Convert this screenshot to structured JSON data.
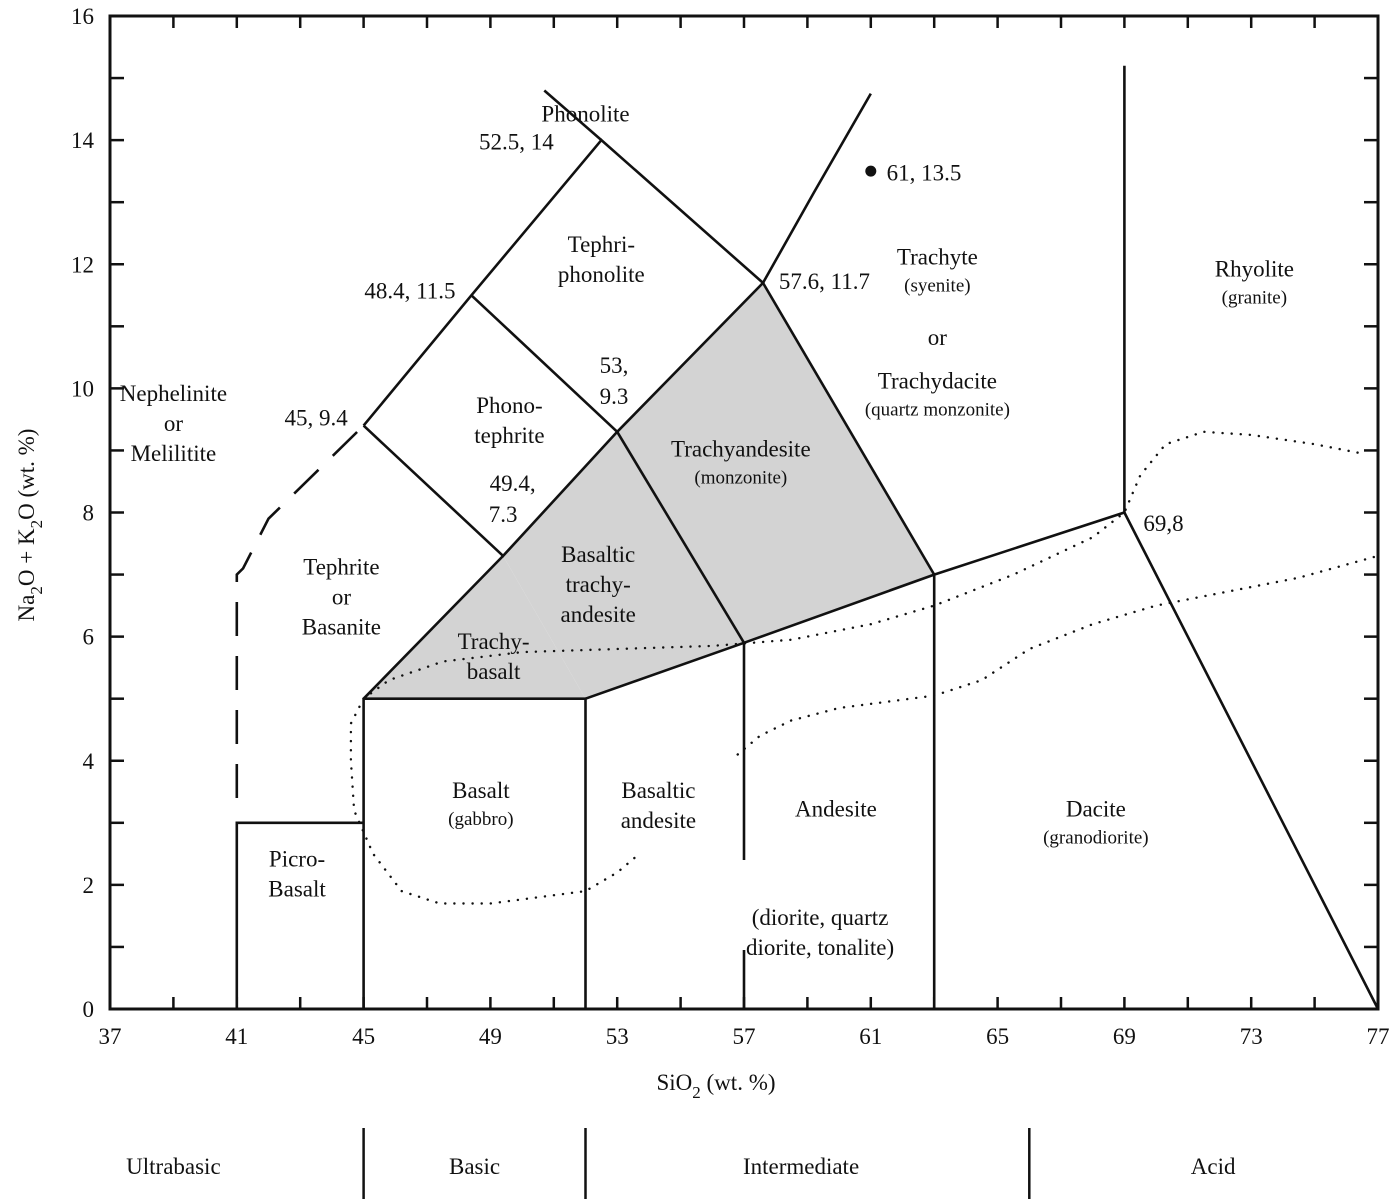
{
  "chart_data": {
    "type": "diagram",
    "x_axis": {
      "label_main": "SiO",
      "label_sub": "2",
      "label_tail": " (wt. %)",
      "range": [
        37,
        77
      ],
      "ticks": [
        "37",
        "41",
        "45",
        "49",
        "53",
        "57",
        "61",
        "65",
        "69",
        "73",
        "77"
      ]
    },
    "y_axis": {
      "label_parts": [
        "Na",
        "2",
        "O + K",
        "2",
        "O (wt. %)"
      ],
      "range": [
        0,
        16
      ],
      "ticks": [
        "0",
        "2",
        "4",
        "6",
        "8",
        "10",
        "12",
        "14",
        "16"
      ]
    },
    "fields": [
      {
        "name": "Phonolite",
        "lines": [
          "Phonolite"
        ],
        "sub": "",
        "at": [
          52.0,
          14.3
        ]
      },
      {
        "name": "Tephri-phonolite",
        "lines": [
          "Tephri-",
          "phonolite"
        ],
        "sub": "",
        "at": [
          52.5,
          12.2
        ]
      },
      {
        "name": "Phono-tephrite",
        "lines": [
          "Phono-",
          "tephrite"
        ],
        "sub": "",
        "at": [
          49.6,
          9.6
        ]
      },
      {
        "name": "Nephelinite or Melilitite",
        "lines": [
          "Nephelinite",
          "or",
          "Melilitite"
        ],
        "sub": "",
        "at": [
          39.0,
          9.8
        ]
      },
      {
        "name": "Tephrite or Basanite",
        "lines": [
          "Tephrite",
          "or",
          "Basanite"
        ],
        "sub": "",
        "at": [
          44.3,
          7.0
        ]
      },
      {
        "name": "Trachybasalt",
        "lines": [
          "Trachy-",
          "basalt"
        ],
        "sub": "",
        "at": [
          49.1,
          5.8
        ]
      },
      {
        "name": "Basaltic trachyandesite",
        "lines": [
          "Basaltic",
          "trachy-",
          "andesite"
        ],
        "sub": "",
        "at": [
          52.4,
          7.2
        ]
      },
      {
        "name": "Trachyandesite",
        "lines": [
          "Trachyandesite"
        ],
        "sub": "(monzonite)",
        "at": [
          56.9,
          8.9
        ]
      },
      {
        "name": "Trachyte",
        "lines": [
          "Trachyte"
        ],
        "sub": "(syenite)",
        "at": [
          63.1,
          12.0
        ]
      },
      {
        "name": "or",
        "lines": [
          "or"
        ],
        "sub": "",
        "at": [
          63.1,
          10.7
        ]
      },
      {
        "name": "Trachydacite",
        "lines": [
          "Trachydacite"
        ],
        "sub": "(quartz monzonite)",
        "at": [
          63.1,
          10.0
        ]
      },
      {
        "name": "Rhyolite",
        "lines": [
          "Rhyolite"
        ],
        "sub": "(granite)",
        "at": [
          73.1,
          11.8
        ]
      },
      {
        "name": "Basalt",
        "lines": [
          "Basalt"
        ],
        "sub": "(gabbro)",
        "at": [
          48.7,
          3.4
        ]
      },
      {
        "name": "Basaltic andesite",
        "lines": [
          "Basaltic",
          "andesite"
        ],
        "sub": "",
        "at": [
          54.3,
          3.4
        ]
      },
      {
        "name": "Andesite",
        "lines": [
          "Andesite"
        ],
        "sub": "",
        "at": [
          59.9,
          3.1
        ]
      },
      {
        "name": "(diorite, quartz diorite, tonalite)",
        "lines": [
          "(diorite, quartz",
          "diorite, tonalite)"
        ],
        "sub": "",
        "at": [
          59.4,
          1.35
        ]
      },
      {
        "name": "Dacite",
        "lines": [
          "Dacite"
        ],
        "sub": "(granodiorite)",
        "at": [
          68.1,
          3.1
        ]
      },
      {
        "name": "Picro-Basalt",
        "lines": [
          "Picro-",
          "Basalt"
        ],
        "sub": "",
        "at": [
          42.9,
          2.3
        ]
      }
    ],
    "shaded_fields": [
      [
        [
          45,
          5
        ],
        [
          49.4,
          7.3
        ],
        [
          52,
          5
        ]
      ],
      [
        [
          49.4,
          7.3
        ],
        [
          53,
          9.3
        ],
        [
          57,
          5.9
        ],
        [
          52,
          5
        ]
      ],
      [
        [
          53,
          9.3
        ],
        [
          57.6,
          11.7
        ],
        [
          63,
          7
        ],
        [
          57,
          5.9
        ]
      ]
    ],
    "boundary_lines": [
      [
        [
          45,
          9.4
        ],
        [
          48.4,
          11.5
        ],
        [
          52.5,
          14
        ],
        [
          57.6,
          11.7
        ],
        [
          53,
          9.3
        ],
        [
          49.4,
          7.3
        ],
        [
          45,
          9.4
        ]
      ],
      [
        [
          48.4,
          11.5
        ],
        [
          53,
          9.3
        ]
      ],
      [
        [
          52.5,
          14
        ],
        [
          50.7,
          14.8
        ]
      ],
      [
        [
          57.6,
          11.7
        ],
        [
          59.2,
          13.15
        ],
        [
          61,
          14.75
        ]
      ],
      [
        [
          49.4,
          7.3
        ],
        [
          45,
          5
        ],
        [
          45,
          0
        ]
      ],
      [
        [
          45,
          5
        ],
        [
          52,
          5
        ],
        [
          52,
          0
        ]
      ],
      [
        [
          52,
          5
        ],
        [
          57,
          5.9
        ],
        [
          63,
          7
        ],
        [
          69,
          8
        ],
        [
          77,
          0
        ]
      ],
      [
        [
          57,
          5.9
        ],
        [
          57,
          2.4
        ]
      ],
      [
        [
          57,
          0
        ],
        [
          57,
          0.95
        ]
      ],
      [
        [
          63,
          7
        ],
        [
          63,
          0
        ]
      ],
      [
        [
          69,
          8
        ],
        [
          69,
          15.2
        ]
      ],
      [
        [
          53,
          9.3
        ],
        [
          57,
          5.9
        ]
      ],
      [
        [
          57.6,
          11.7
        ],
        [
          63,
          7
        ]
      ],
      [
        [
          41,
          0
        ],
        [
          41,
          3
        ],
        [
          45,
          3
        ]
      ]
    ],
    "dashed_line": [
      [
        41.0,
        3.4
      ],
      [
        41.0,
        7.0
      ],
      [
        41.2,
        7.1
      ],
      [
        42.0,
        7.9
      ],
      [
        45.0,
        9.4
      ]
    ],
    "point_labels": [
      {
        "text": "52.5, 14",
        "at": [
          51.0,
          13.85
        ],
        "anchor": "end"
      },
      {
        "text": "48.4, 11.5",
        "at": [
          47.9,
          11.45
        ],
        "anchor": "end"
      },
      {
        "text": "45, 9.4",
        "at": [
          44.5,
          9.4
        ],
        "anchor": "end"
      },
      {
        "text": "53,",
        "at": [
          52.9,
          10.25
        ],
        "anchor": "middle"
      },
      {
        "text": "9.3",
        "at": [
          52.9,
          9.75
        ],
        "anchor": "middle"
      },
      {
        "text": "49.4,",
        "at": [
          49.7,
          8.35
        ],
        "anchor": "middle"
      },
      {
        "text": "7.3",
        "at": [
          49.4,
          7.85
        ],
        "anchor": "middle"
      },
      {
        "text": "57.6, 11.7",
        "at": [
          58.1,
          11.6
        ],
        "anchor": "start"
      },
      {
        "text": "61, 13.5",
        "at": [
          61.5,
          13.35
        ],
        "anchor": "start"
      },
      {
        "text": "69,8",
        "at": [
          69.6,
          7.7
        ],
        "anchor": "start"
      }
    ],
    "marked_point": [
      61,
      13.5
    ],
    "dotted_curves": [
      [
        [
          45.0,
          5.0
        ],
        [
          44.6,
          4.6
        ],
        [
          44.6,
          4.0
        ],
        [
          44.7,
          3.2
        ],
        [
          45.3,
          2.5
        ],
        [
          46.2,
          1.9
        ],
        [
          47.4,
          1.7
        ],
        [
          49.0,
          1.7
        ],
        [
          50.5,
          1.8
        ],
        [
          52.0,
          1.9
        ],
        [
          53.0,
          2.2
        ],
        [
          53.7,
          2.5
        ]
      ],
      [
        [
          45.0,
          5.0
        ],
        [
          45.8,
          5.3
        ],
        [
          47.5,
          5.6
        ],
        [
          50.0,
          5.75
        ],
        [
          53.0,
          5.8
        ],
        [
          56.0,
          5.85
        ],
        [
          58.5,
          5.95
        ],
        [
          61.0,
          6.2
        ],
        [
          63.0,
          6.5
        ],
        [
          65.5,
          7.0
        ],
        [
          68.0,
          7.6
        ],
        [
          69.0,
          8.0
        ],
        [
          69.5,
          8.6
        ],
        [
          70.3,
          9.1
        ],
        [
          71.5,
          9.3
        ],
        [
          73.0,
          9.25
        ],
        [
          75.0,
          9.1
        ],
        [
          76.5,
          8.95
        ]
      ],
      [
        [
          56.8,
          4.1
        ],
        [
          57.5,
          4.4
        ],
        [
          58.5,
          4.65
        ],
        [
          60.0,
          4.85
        ],
        [
          61.5,
          4.95
        ],
        [
          63.0,
          5.05
        ],
        [
          64.5,
          5.3
        ],
        [
          66.0,
          5.8
        ],
        [
          68.0,
          6.2
        ],
        [
          70.0,
          6.5
        ],
        [
          72.0,
          6.7
        ],
        [
          74.5,
          6.95
        ],
        [
          77.0,
          7.3
        ]
      ]
    ]
  },
  "classes": [
    {
      "label": "Ultrabasic",
      "at": 39.0
    },
    {
      "label": "Basic",
      "at": 48.5
    },
    {
      "label": "Intermediate",
      "at": 58.8
    },
    {
      "label": "Acid",
      "at": 71.8
    }
  ],
  "class_dividers": [
    45,
    52,
    66
  ]
}
